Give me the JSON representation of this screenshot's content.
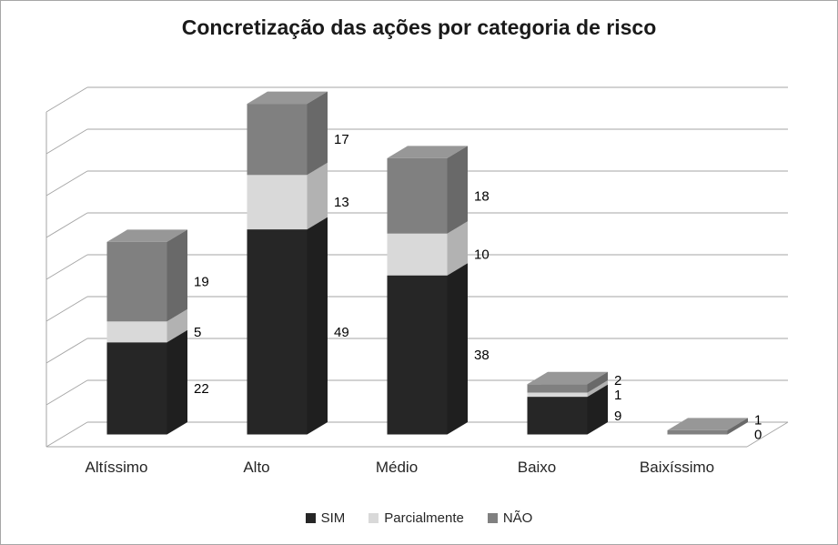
{
  "chart_data": {
    "type": "bar",
    "variant": "3d-stacked-column",
    "title": "Concretização das ações por categoria de risco",
    "categories": [
      "Altíssimo",
      "Alto",
      "Médio",
      "Baixo",
      "Baixíssimo"
    ],
    "series": [
      {
        "name": "SIM",
        "color": "#262626",
        "values": [
          22,
          49,
          38,
          9,
          0
        ]
      },
      {
        "name": "Parcialmente",
        "color": "#d9d9d9",
        "values": [
          5,
          13,
          10,
          1,
          0
        ]
      },
      {
        "name": "NÃO",
        "color": "#808080",
        "values": [
          19,
          17,
          18,
          2,
          1
        ]
      }
    ],
    "value_axis": {
      "min": 0,
      "max": 80,
      "step": 10,
      "tick_labels_visible": false
    },
    "grid": true,
    "data_labels": true,
    "legend_position": "bottom",
    "xlabel": "",
    "ylabel": ""
  },
  "colors": {
    "grid": "#a6a6a6",
    "border": "#a6a6a6",
    "title_text": "#1a1a1a",
    "label_text": "#000000",
    "category_text": "#262626"
  }
}
